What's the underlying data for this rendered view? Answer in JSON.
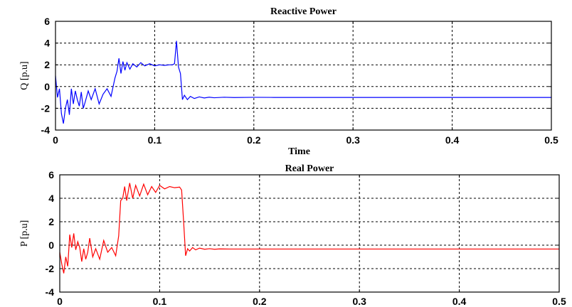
{
  "chart_data": [
    {
      "type": "line",
      "title": "Reactive Power",
      "xlabel": "Time",
      "ylabel": "Q [p.u]",
      "xlim": [
        0,
        0.5
      ],
      "ylim": [
        -4,
        6
      ],
      "xticks": [
        "0",
        "0.1",
        "0.2",
        "0.3",
        "0.4",
        "0.5"
      ],
      "yticks": [
        "6",
        "4",
        "2",
        "0",
        "-2",
        "-4"
      ],
      "grid": true,
      "color": "#0000ff",
      "series": [
        {
          "x": [
            0,
            0.002,
            0.004,
            0.006,
            0.008,
            0.01,
            0.012,
            0.014,
            0.016,
            0.018,
            0.02,
            0.022,
            0.024,
            0.026,
            0.028,
            0.03,
            0.033,
            0.036,
            0.04,
            0.044,
            0.048,
            0.052,
            0.056,
            0.06,
            0.062,
            0.064,
            0.066,
            0.068,
            0.07,
            0.072,
            0.075,
            0.078,
            0.082,
            0.086,
            0.09,
            0.095,
            0.1,
            0.105,
            0.11,
            0.115,
            0.118,
            0.12,
            0.122,
            0.124,
            0.126,
            0.128,
            0.13,
            0.133,
            0.136,
            0.14,
            0.145,
            0.15,
            0.155,
            0.16,
            0.17,
            0.18,
            0.2,
            0.22,
            0.25,
            0.3,
            0.35,
            0.4,
            0.45,
            0.5
          ],
          "y": [
            1.0,
            -1.0,
            -0.2,
            -2.5,
            -3.4,
            -2.0,
            -1.2,
            -2.6,
            -0.2,
            -1.6,
            -0.4,
            -1.2,
            -1.8,
            -0.5,
            -2.0,
            -1.4,
            -0.4,
            -1.2,
            -0.2,
            -1.6,
            -0.7,
            -0.2,
            -0.9,
            0.8,
            1.4,
            2.6,
            1.2,
            2.3,
            1.5,
            2.2,
            1.6,
            2.1,
            1.8,
            2.2,
            1.9,
            2.1,
            1.9,
            2.0,
            1.95,
            2.0,
            2.0,
            2.1,
            4.2,
            1.8,
            1.2,
            -1.2,
            -0.8,
            -1.2,
            -0.9,
            -1.1,
            -0.95,
            -1.05,
            -0.98,
            -1.03,
            -0.98,
            -1.01,
            -0.99,
            -1.0,
            -1.0,
            -1.0,
            -1.0,
            -1.0,
            -1.0,
            -1.0
          ]
        }
      ]
    },
    {
      "type": "line",
      "title": "Real Power",
      "xlabel": "",
      "ylabel": "P [p.u]",
      "xlim": [
        0,
        0.5
      ],
      "ylim": [
        -4,
        6
      ],
      "xticks": [
        "0",
        "0.1",
        "0.2",
        "0.3",
        "0.4",
        "0.5"
      ],
      "yticks": [
        "6",
        "4",
        "2",
        "0",
        "-2",
        "-4"
      ],
      "grid": true,
      "color": "#ff0000",
      "series": [
        {
          "x": [
            0,
            0.002,
            0.004,
            0.006,
            0.008,
            0.01,
            0.012,
            0.014,
            0.016,
            0.018,
            0.02,
            0.022,
            0.024,
            0.026,
            0.028,
            0.03,
            0.033,
            0.036,
            0.04,
            0.044,
            0.048,
            0.052,
            0.056,
            0.059,
            0.061,
            0.063,
            0.065,
            0.067,
            0.07,
            0.073,
            0.076,
            0.08,
            0.084,
            0.088,
            0.092,
            0.096,
            0.1,
            0.105,
            0.11,
            0.115,
            0.12,
            0.122,
            0.124,
            0.126,
            0.128,
            0.13,
            0.133,
            0.136,
            0.14,
            0.145,
            0.15,
            0.155,
            0.16,
            0.17,
            0.18,
            0.2,
            0.25,
            0.3,
            0.35,
            0.4,
            0.45,
            0.5
          ],
          "y": [
            -0.6,
            -1.6,
            -2.4,
            -1.0,
            -1.8,
            0.9,
            -0.2,
            1.0,
            -0.4,
            0.3,
            -0.2,
            -1.4,
            -0.3,
            -1.2,
            -0.6,
            0.6,
            -1.0,
            -0.3,
            -1.2,
            0.4,
            -0.6,
            -0.2,
            -0.9,
            0.8,
            3.8,
            4.0,
            5.0,
            3.8,
            5.3,
            4.0,
            5.1,
            4.2,
            5.2,
            4.3,
            5.0,
            4.5,
            5.1,
            4.8,
            5.0,
            4.9,
            4.95,
            4.7,
            2.0,
            -0.9,
            -0.3,
            -0.5,
            -0.2,
            -0.4,
            -0.25,
            -0.35,
            -0.3,
            -0.35,
            -0.32,
            -0.33,
            -0.33,
            -0.33,
            -0.33,
            -0.33,
            -0.33,
            -0.33,
            -0.33,
            -0.33
          ]
        }
      ]
    }
  ]
}
